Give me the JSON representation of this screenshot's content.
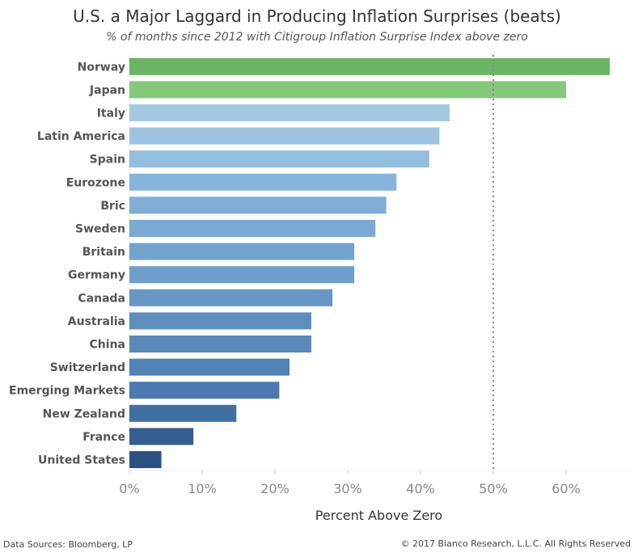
{
  "title": "U.S. a Major Laggard in Producing Inflation Surprises (beats)",
  "subtitle": "% of months since 2012 with Citigroup Inflation Surprise Index above zero",
  "footer": {
    "source": "Data Sources: Bloomberg, LP",
    "copyright": "2017 Bianco Research, L.L.C. All Rights Reserved",
    "copyright_symbol": "©"
  },
  "chart_data": {
    "type": "bar",
    "orientation": "horizontal",
    "categories": [
      "Norway",
      "Japan",
      "Italy",
      "Latin America",
      "Spain",
      "Eurozone",
      "Bric",
      "Sweden",
      "Britain",
      "Germany",
      "Canada",
      "Australia",
      "China",
      "Switzerland",
      "Emerging Markets",
      "New Zealand",
      "France",
      "United States"
    ],
    "values": [
      66,
      60,
      44,
      42.6,
      41.2,
      36.7,
      35.3,
      33.8,
      30.9,
      30.9,
      27.9,
      25,
      25,
      22,
      20.6,
      14.7,
      8.8,
      4.4
    ],
    "colors": [
      "#6ab464",
      "#84c97a",
      "#a4c9e3",
      "#9cc4e1",
      "#93bee0",
      "#86b4da",
      "#80aed6",
      "#7aa9d2",
      "#73a3cd",
      "#6e9ecb",
      "#6897c5",
      "#5f8ebe",
      "#5b8aba",
      "#5283b5",
      "#4a7aaf",
      "#416fa3",
      "#355f93",
      "#2b5283"
    ],
    "xlabel": "Percent Above Zero",
    "xticks": [
      "0%",
      "10%",
      "20%",
      "30%",
      "40%",
      "50%",
      "60%"
    ],
    "xtick_values": [
      0,
      10,
      20,
      30,
      40,
      50,
      60
    ],
    "xlim": [
      0,
      69
    ],
    "reference_line": 50
  }
}
